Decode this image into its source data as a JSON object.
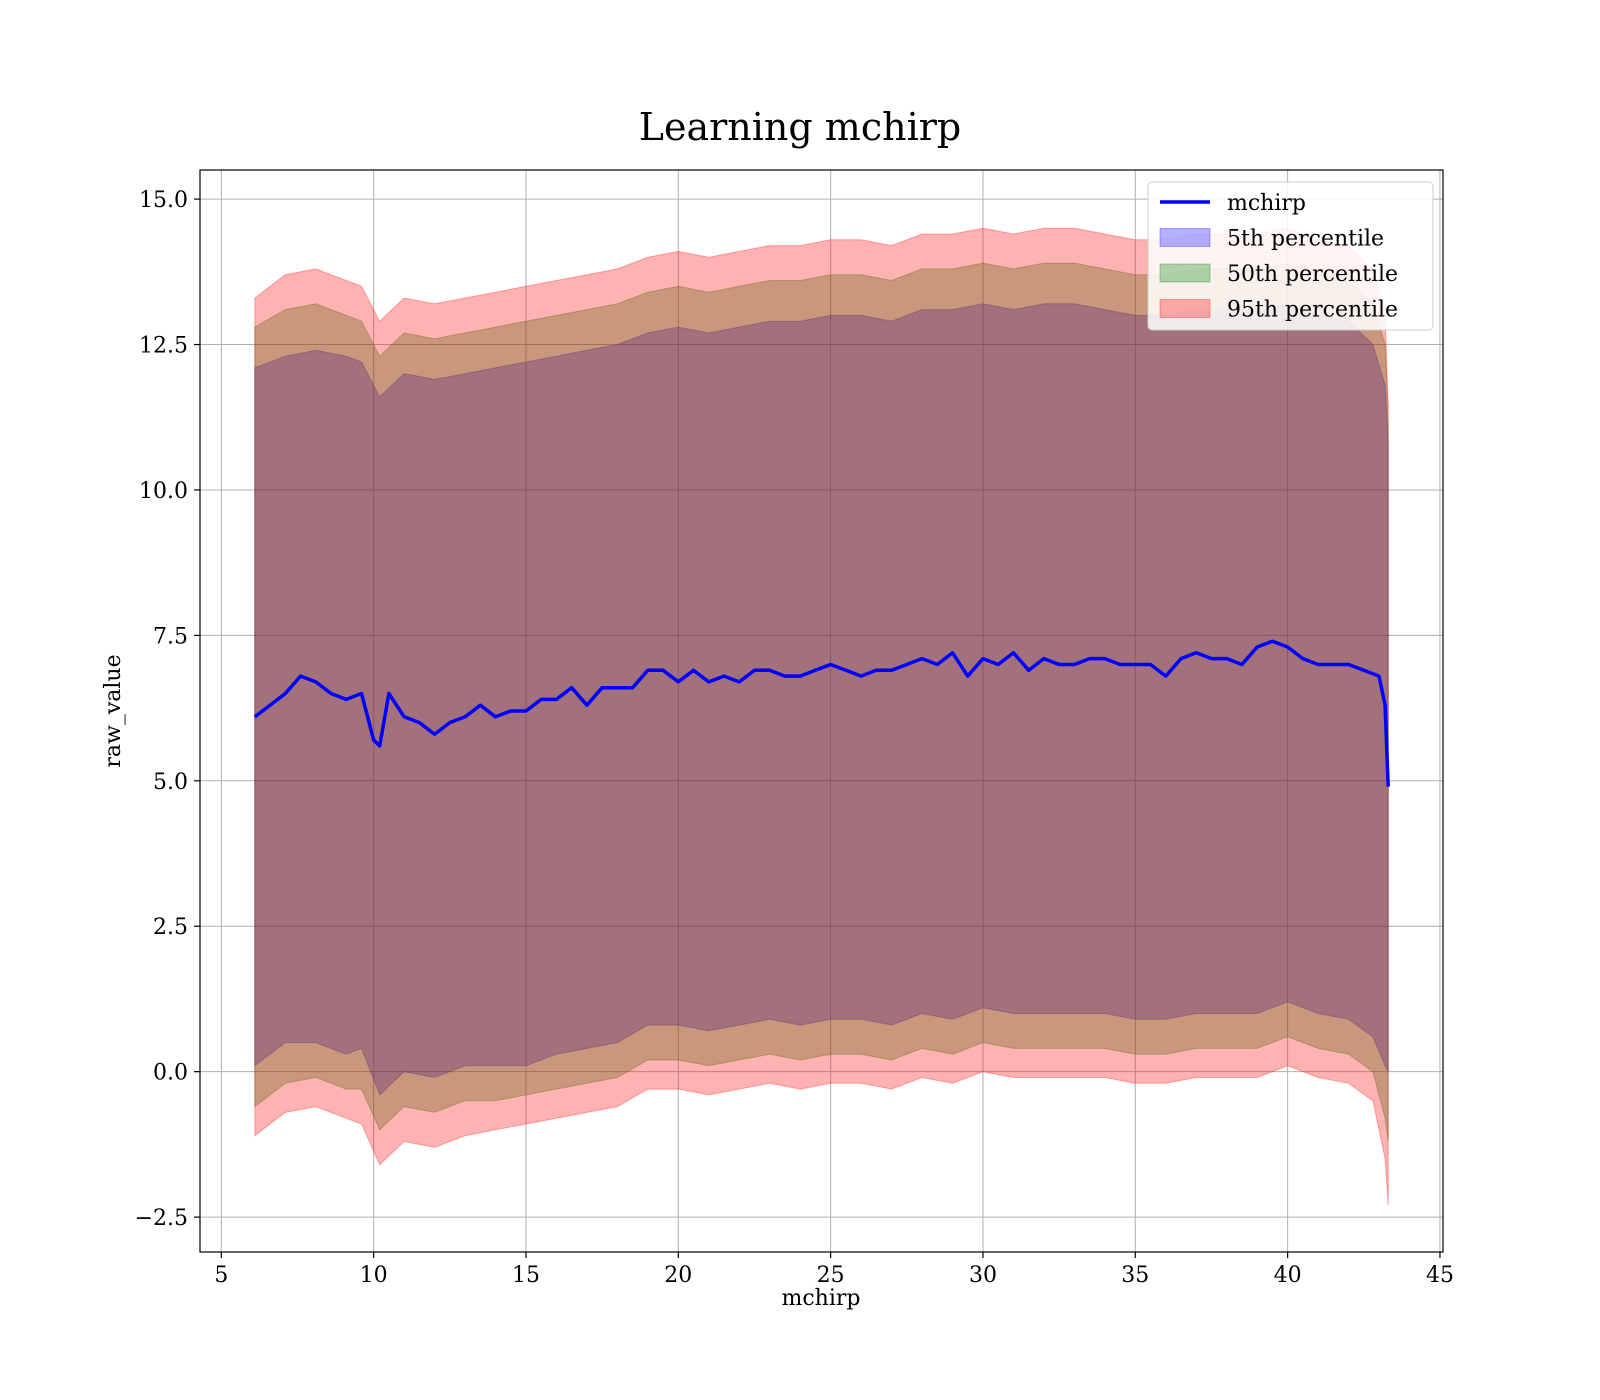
{
  "chart_data": {
    "type": "area",
    "title": "Learning mchirp",
    "xlabel": "mchirp",
    "ylabel": "raw_value",
    "xlim": [
      4.3,
      45.1
    ],
    "ylim": [
      -3.1,
      15.5
    ],
    "xticks": [
      5,
      10,
      15,
      20,
      25,
      30,
      35,
      40,
      45
    ],
    "yticks": [
      -2.5,
      0.0,
      2.5,
      5.0,
      7.5,
      10.0,
      12.5,
      15.0
    ],
    "ytick_labels": [
      "−2.5",
      "0.0",
      "2.5",
      "5.0",
      "7.5",
      "10.0",
      "12.5",
      "15.0"
    ],
    "grid": true,
    "legend_position": "top-right",
    "series": [
      {
        "name": "mchirp",
        "kind": "line",
        "color": "#0000ff",
        "x": [
          6.1,
          6.6,
          7.1,
          7.6,
          8.1,
          8.6,
          9.1,
          9.6,
          10.0,
          10.2,
          10.5,
          11.0,
          11.5,
          12.0,
          12.5,
          13.0,
          13.5,
          14.0,
          14.5,
          15.0,
          15.5,
          16.0,
          16.5,
          17.0,
          17.5,
          18.0,
          18.5,
          19.0,
          19.5,
          20.0,
          20.5,
          21.0,
          21.5,
          22.0,
          22.5,
          23.0,
          23.5,
          24.0,
          24.5,
          25.0,
          25.5,
          26.0,
          26.5,
          27.0,
          27.5,
          28.0,
          28.5,
          29.0,
          29.5,
          30.0,
          30.5,
          31.0,
          31.5,
          32.0,
          32.5,
          33.0,
          33.5,
          34.0,
          34.5,
          35.0,
          35.5,
          36.0,
          36.5,
          37.0,
          37.5,
          38.0,
          38.5,
          39.0,
          39.5,
          40.0,
          40.5,
          41.0,
          41.5,
          42.0,
          42.5,
          43.0,
          43.2,
          43.3
        ],
        "y": [
          6.1,
          6.3,
          6.5,
          6.8,
          6.7,
          6.5,
          6.4,
          6.5,
          5.7,
          5.6,
          6.5,
          6.1,
          6.0,
          5.8,
          6.0,
          6.1,
          6.3,
          6.1,
          6.2,
          6.2,
          6.4,
          6.4,
          6.6,
          6.3,
          6.6,
          6.6,
          6.6,
          6.9,
          6.9,
          6.7,
          6.9,
          6.7,
          6.8,
          6.7,
          6.9,
          6.9,
          6.8,
          6.8,
          6.9,
          7.0,
          6.9,
          6.8,
          6.9,
          6.9,
          7.0,
          7.1,
          7.0,
          7.2,
          6.8,
          7.1,
          7.0,
          7.2,
          6.9,
          7.1,
          7.0,
          7.0,
          7.1,
          7.1,
          7.0,
          7.0,
          7.0,
          6.8,
          7.1,
          7.2,
          7.1,
          7.1,
          7.0,
          7.3,
          7.4,
          7.3,
          7.1,
          7.0,
          7.0,
          7.0,
          6.9,
          6.8,
          6.3,
          4.9
        ]
      },
      {
        "name": "5th percentile",
        "kind": "band",
        "color": "#0000ff",
        "x": [
          6.1,
          7.1,
          8.1,
          9.1,
          9.6,
          10.2,
          11.0,
          12.0,
          13.0,
          14.0,
          15.0,
          16.0,
          17.0,
          18.0,
          19.0,
          20.0,
          21.0,
          22.0,
          23.0,
          24.0,
          25.0,
          26.0,
          27.0,
          28.0,
          29.0,
          30.0,
          31.0,
          32.0,
          33.0,
          34.0,
          35.0,
          36.0,
          37.0,
          38.0,
          39.0,
          40.0,
          41.0,
          42.0,
          42.8,
          43.2,
          43.3
        ],
        "lower": [
          0.1,
          0.5,
          0.5,
          0.3,
          0.4,
          -0.4,
          0.0,
          -0.1,
          0.1,
          0.1,
          0.1,
          0.3,
          0.4,
          0.5,
          0.8,
          0.8,
          0.7,
          0.8,
          0.9,
          0.8,
          0.9,
          0.9,
          0.8,
          1.0,
          0.9,
          1.1,
          1.0,
          1.0,
          1.0,
          1.0,
          0.9,
          0.9,
          1.0,
          1.0,
          1.0,
          1.2,
          1.0,
          0.9,
          0.6,
          0.1,
          0.0
        ],
        "upper": [
          12.1,
          12.3,
          12.4,
          12.3,
          12.2,
          11.6,
          12.0,
          11.9,
          12.0,
          12.1,
          12.2,
          12.3,
          12.4,
          12.5,
          12.7,
          12.8,
          12.7,
          12.8,
          12.9,
          12.9,
          13.0,
          13.0,
          12.9,
          13.1,
          13.1,
          13.2,
          13.1,
          13.2,
          13.2,
          13.1,
          13.0,
          13.0,
          13.1,
          13.1,
          13.1,
          13.2,
          13.0,
          12.9,
          12.5,
          11.8,
          10.8
        ]
      },
      {
        "name": "50th percentile",
        "kind": "band",
        "color": "#008000",
        "x": [
          6.1,
          7.1,
          8.1,
          9.1,
          9.6,
          10.2,
          11.0,
          12.0,
          13.0,
          14.0,
          15.0,
          16.0,
          17.0,
          18.0,
          19.0,
          20.0,
          21.0,
          22.0,
          23.0,
          24.0,
          25.0,
          26.0,
          27.0,
          28.0,
          29.0,
          30.0,
          31.0,
          32.0,
          33.0,
          34.0,
          35.0,
          36.0,
          37.0,
          38.0,
          39.0,
          40.0,
          41.0,
          42.0,
          42.8,
          43.2,
          43.3
        ],
        "lower": [
          -0.6,
          -0.2,
          -0.1,
          -0.3,
          -0.3,
          -1.0,
          -0.6,
          -0.7,
          -0.5,
          -0.5,
          -0.4,
          -0.3,
          -0.2,
          -0.1,
          0.2,
          0.2,
          0.1,
          0.2,
          0.3,
          0.2,
          0.3,
          0.3,
          0.2,
          0.4,
          0.3,
          0.5,
          0.4,
          0.4,
          0.4,
          0.4,
          0.3,
          0.3,
          0.4,
          0.4,
          0.4,
          0.6,
          0.4,
          0.3,
          0.0,
          -0.8,
          -1.2
        ],
        "upper": [
          12.8,
          13.1,
          13.2,
          13.0,
          12.9,
          12.3,
          12.7,
          12.6,
          12.7,
          12.8,
          12.9,
          13.0,
          13.1,
          13.2,
          13.4,
          13.5,
          13.4,
          13.5,
          13.6,
          13.6,
          13.7,
          13.7,
          13.6,
          13.8,
          13.8,
          13.9,
          13.8,
          13.9,
          13.9,
          13.8,
          13.7,
          13.7,
          13.8,
          13.8,
          13.8,
          13.9,
          13.7,
          13.6,
          13.2,
          12.5,
          11.2
        ]
      },
      {
        "name": "95th percentile",
        "kind": "band",
        "color": "#ff0000",
        "x": [
          6.1,
          7.1,
          8.1,
          9.1,
          9.6,
          10.2,
          11.0,
          12.0,
          13.0,
          14.0,
          15.0,
          16.0,
          17.0,
          18.0,
          19.0,
          20.0,
          21.0,
          22.0,
          23.0,
          24.0,
          25.0,
          26.0,
          27.0,
          28.0,
          29.0,
          30.0,
          31.0,
          32.0,
          33.0,
          34.0,
          35.0,
          36.0,
          37.0,
          38.0,
          39.0,
          40.0,
          41.0,
          42.0,
          42.8,
          43.2,
          43.3
        ],
        "lower": [
          -1.1,
          -0.7,
          -0.6,
          -0.8,
          -0.9,
          -1.6,
          -1.2,
          -1.3,
          -1.1,
          -1.0,
          -0.9,
          -0.8,
          -0.7,
          -0.6,
          -0.3,
          -0.3,
          -0.4,
          -0.3,
          -0.2,
          -0.3,
          -0.2,
          -0.2,
          -0.3,
          -0.1,
          -0.2,
          0.0,
          -0.1,
          -0.1,
          -0.1,
          -0.1,
          -0.2,
          -0.2,
          -0.1,
          -0.1,
          -0.1,
          0.1,
          -0.1,
          -0.2,
          -0.5,
          -1.5,
          -2.3
        ],
        "upper": [
          13.3,
          13.7,
          13.8,
          13.6,
          13.5,
          12.9,
          13.3,
          13.2,
          13.3,
          13.4,
          13.5,
          13.6,
          13.7,
          13.8,
          14.0,
          14.1,
          14.0,
          14.1,
          14.2,
          14.2,
          14.3,
          14.3,
          14.2,
          14.4,
          14.4,
          14.5,
          14.4,
          14.5,
          14.5,
          14.4,
          14.3,
          14.3,
          14.4,
          14.4,
          14.4,
          14.5,
          14.3,
          14.2,
          13.8,
          13.0,
          11.5
        ]
      }
    ]
  }
}
